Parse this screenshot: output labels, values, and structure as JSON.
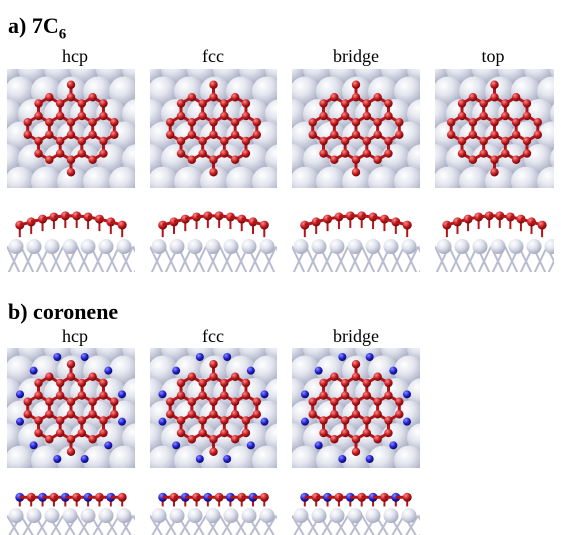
{
  "section_a": {
    "title_main": "a) 7C",
    "title_sub": "6",
    "labels": [
      "hcp",
      "fcc",
      "bridge",
      "top"
    ]
  },
  "section_b": {
    "title": "b) coronene",
    "labels": [
      "hcp",
      "fcc",
      "bridge"
    ]
  },
  "colors": {
    "metal_atom": "#a9adc3",
    "metal_atom_light": "#e4e6ef",
    "carbon_atom": "#c0181c",
    "carbon_bond": "#b31418",
    "hydrogen_atom": "#1f1ed1"
  }
}
